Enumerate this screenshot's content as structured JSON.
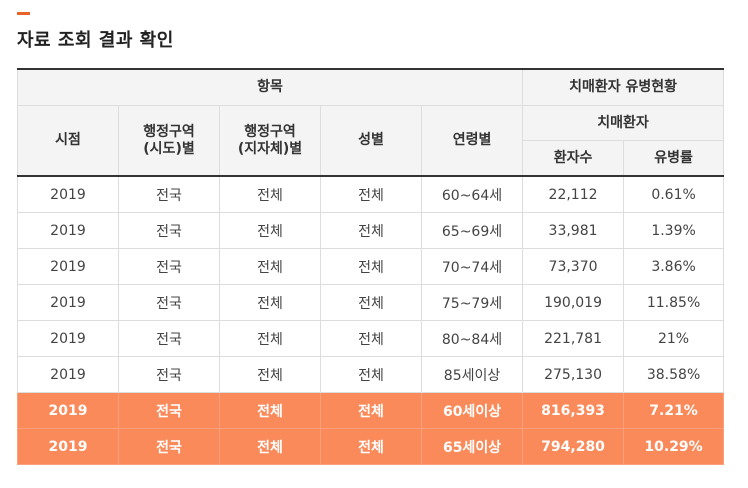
{
  "page": {
    "title": "자료 조회 결과 확인"
  },
  "colors": {
    "accent": "#e8642b",
    "summary_row_bg": "#fb8a5a",
    "header_bg": "#f4f4f4"
  },
  "table": {
    "group_header_left": "항목",
    "group_header_right": "치매환자 유병현황",
    "subgroup_header": "치매환자",
    "columns": [
      "시점",
      "행정구역\n(시도)별",
      "행정구역\n(지자체)별",
      "성별",
      "연령별",
      "환자수",
      "유병률"
    ],
    "rows": [
      [
        "2019",
        "전국",
        "전체",
        "전체",
        "60~64세",
        "22,112",
        "0.61%"
      ],
      [
        "2019",
        "전국",
        "전체",
        "전체",
        "65~69세",
        "33,981",
        "1.39%"
      ],
      [
        "2019",
        "전국",
        "전체",
        "전체",
        "70~74세",
        "73,370",
        "3.86%"
      ],
      [
        "2019",
        "전국",
        "전체",
        "전체",
        "75~79세",
        "190,019",
        "11.85%"
      ],
      [
        "2019",
        "전국",
        "전체",
        "전체",
        "80~84세",
        "221,781",
        "21%"
      ],
      [
        "2019",
        "전국",
        "전체",
        "전체",
        "85세이상",
        "275,130",
        "38.58%"
      ]
    ],
    "summary_rows": [
      [
        "2019",
        "전국",
        "전체",
        "전체",
        "60세이상",
        "816,393",
        "7.21%"
      ],
      [
        "2019",
        "전국",
        "전체",
        "전체",
        "65세이상",
        "794,280",
        "10.29%"
      ]
    ]
  }
}
